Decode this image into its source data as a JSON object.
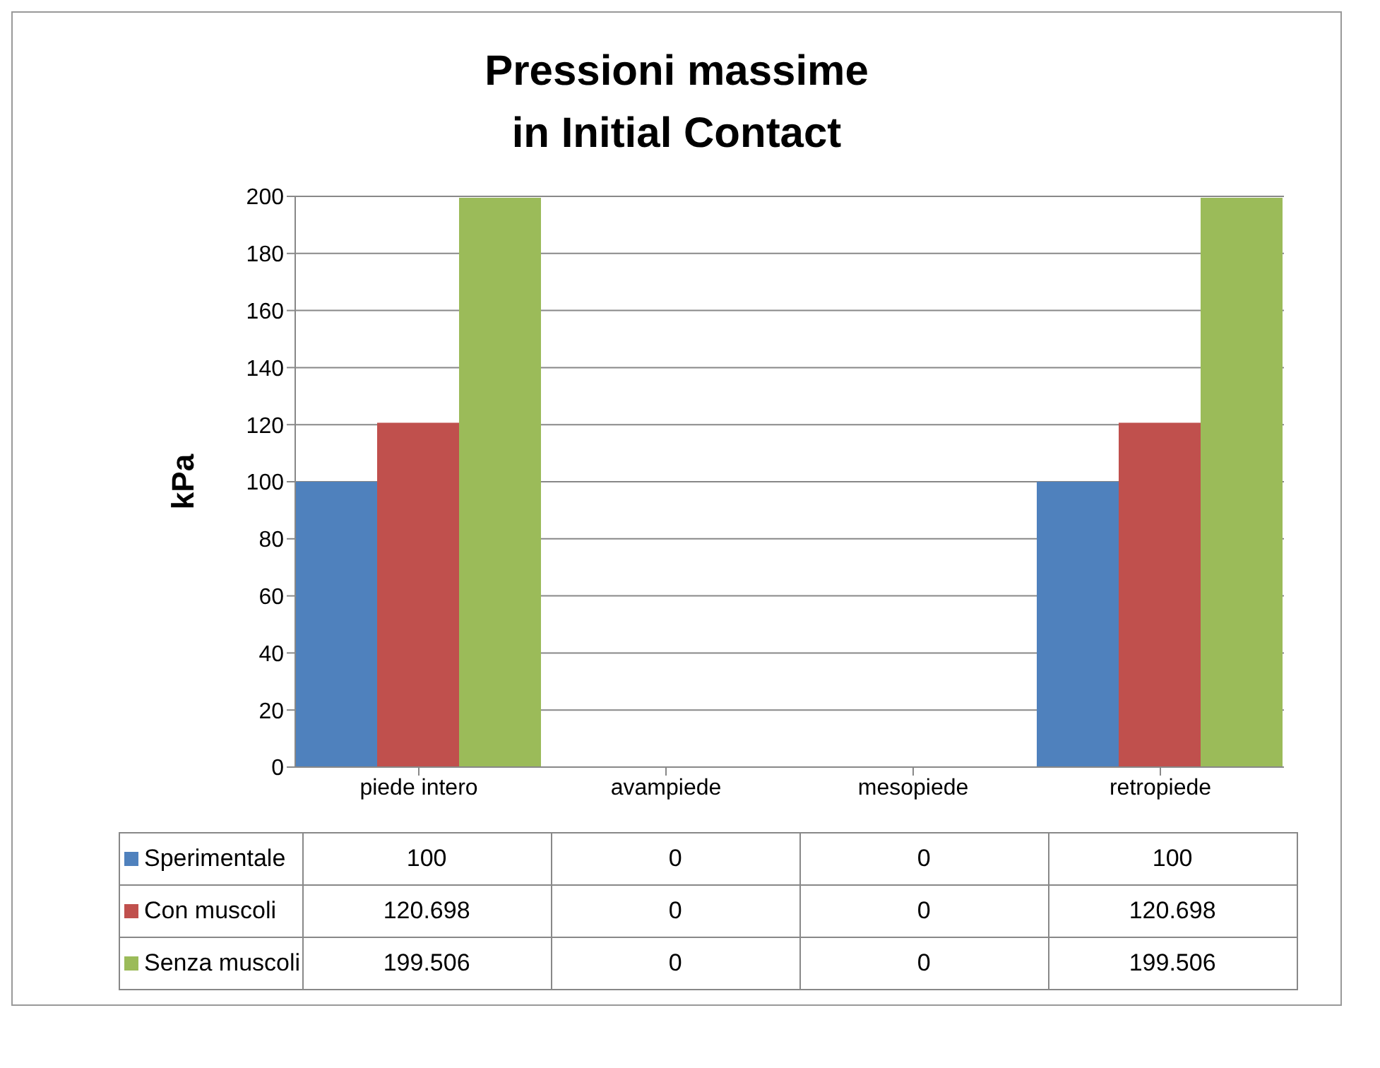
{
  "chart_data": {
    "type": "bar",
    "title": "Pressioni massime\nin Initial Contact",
    "ylabel": "kPa",
    "categories": [
      "piede intero",
      "avampiede",
      "mesopiede",
      "retropiede"
    ],
    "series": [
      {
        "name": "Sperimentale",
        "color": "#4f81bd",
        "values": [
          100,
          0,
          0,
          100
        ]
      },
      {
        "name": "Con muscoli",
        "color": "#c0504d",
        "values": [
          120.698,
          0,
          0,
          120.698
        ]
      },
      {
        "name": "Senza muscoli",
        "color": "#9bbb59",
        "values": [
          199.506,
          0,
          0,
          199.506
        ]
      }
    ],
    "ylim": [
      0,
      200
    ],
    "yticks": [
      0,
      20,
      40,
      60,
      80,
      100,
      120,
      140,
      160,
      180,
      200
    ],
    "grid": "y",
    "legend": "bottom",
    "data_labels": true
  }
}
